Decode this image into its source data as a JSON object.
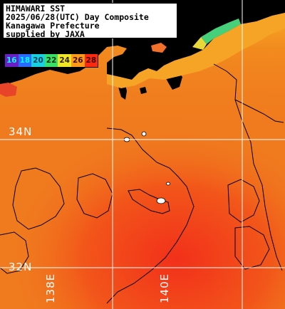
{
  "title": {
    "line1": "HIMAWARI SST",
    "line2": "2025/06/28(UTC) Day Composite",
    "line3": "Kanagawa Prefecture",
    "line4": "supplied by JAXA"
  },
  "legend": {
    "ticks": [
      "16",
      "18",
      "20",
      "22",
      "24",
      "26",
      "28"
    ],
    "colors": [
      "#6a1fc7",
      "#2a6bff",
      "#18d0e0",
      "#38e06a",
      "#f0e628",
      "#ff9a1a",
      "#ff2a10"
    ]
  },
  "grid": {
    "lat_labels": [
      "34N",
      "32N"
    ],
    "lon_labels": [
      "138E",
      "140E"
    ]
  },
  "colors": {
    "sea_warm": "#f26a1a",
    "sea_hot": "#f2361a",
    "coast_band": "#f5a020",
    "cool_patch": "#46d07a",
    "land": "#000000",
    "grid_line": "#ffffff"
  }
}
